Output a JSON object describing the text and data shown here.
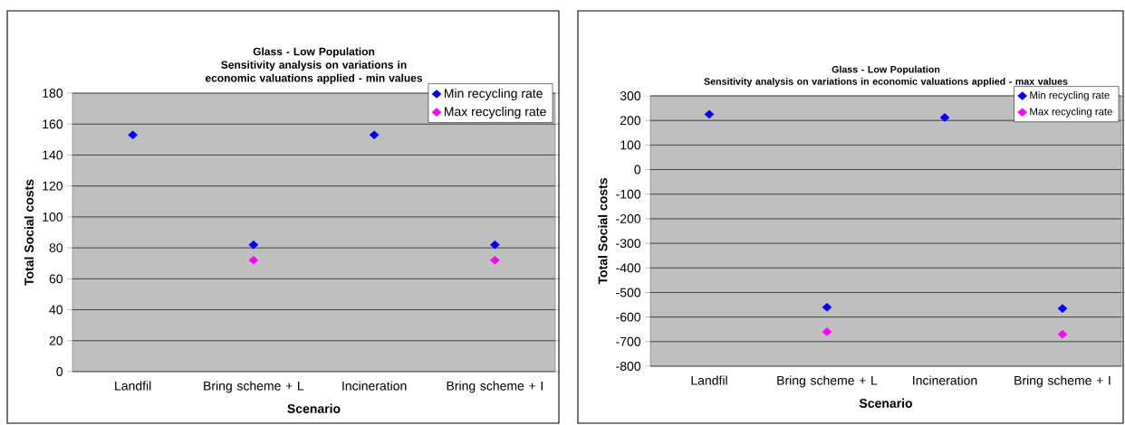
{
  "chart_data": [
    {
      "type": "scatter",
      "title": "Glass - Low Population",
      "subtitle": "Sensitivity analysis on variations in economic valuations applied - min values",
      "xlabel": "Scenario",
      "ylabel": "Total Social costs",
      "categories": [
        "Landfil",
        "Bring scheme + L",
        "Incineration",
        "Bring scheme  + I"
      ],
      "series": [
        {
          "name": "Min recycling rate",
          "color": "#0000ff",
          "values": [
            153,
            82,
            153,
            82
          ]
        },
        {
          "name": "Max recycling rate",
          "color": "#ff00ff",
          "values": [
            null,
            72,
            null,
            72
          ]
        }
      ],
      "ylim": [
        0,
        180
      ],
      "yticks": [
        0,
        20,
        40,
        60,
        80,
        100,
        120,
        140,
        160,
        180
      ],
      "grid": "y",
      "legend": "top right",
      "marker": "diamond"
    },
    {
      "type": "scatter",
      "title": "Glass - Low Population",
      "subtitle": "Sensitivity analysis on variations in economic valuations applied - max values",
      "xlabel": "Scenario",
      "ylabel": "Total Social costs",
      "categories": [
        "Landfil",
        "Bring scheme + L",
        "Incineration",
        "Bring scheme  + I"
      ],
      "series": [
        {
          "name": "Min recycling rate",
          "color": "#0000ff",
          "values": [
            225,
            -560,
            212,
            -565
          ]
        },
        {
          "name": "Max recycling rate",
          "color": "#ff00ff",
          "values": [
            null,
            -660,
            null,
            -670
          ]
        }
      ],
      "ylim": [
        -800,
        300
      ],
      "yticks": [
        -800,
        -700,
        -600,
        -500,
        -400,
        -300,
        -200,
        -100,
        0,
        100,
        200,
        300
      ],
      "grid": "y",
      "legend": "top right",
      "marker": "diamond"
    }
  ]
}
